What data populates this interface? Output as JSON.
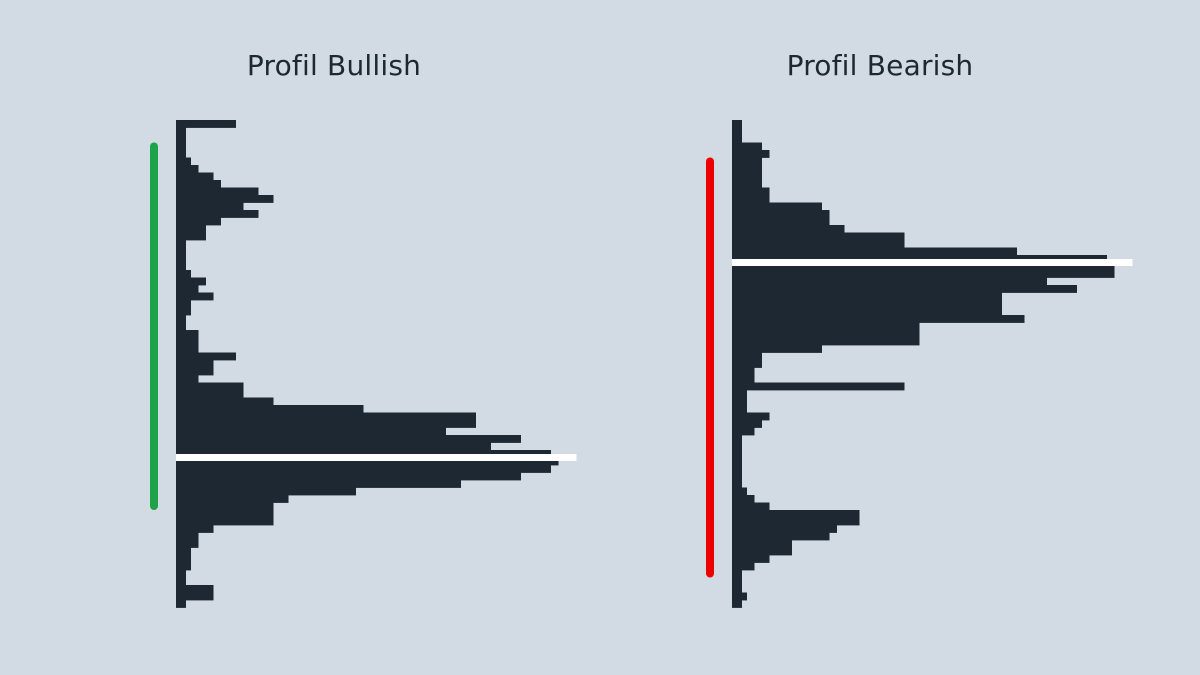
{
  "chart_data": [
    {
      "type": "bar",
      "orientation": "horizontal",
      "variant": "volume-profile",
      "title": "Profil Bullish",
      "range_line_color": "#1fa34a",
      "bar_color": "#1d2833",
      "poc_line_color": "#ffffff",
      "poc_level": 45.5,
      "range": [
        4,
        52
      ],
      "levels": [
        1,
        2,
        3,
        4,
        5,
        6,
        7,
        8,
        9,
        10,
        11,
        12,
        13,
        14,
        15,
        16,
        17,
        18,
        19,
        20,
        21,
        22,
        23,
        24,
        25,
        26,
        27,
        28,
        29,
        30,
        31,
        32,
        33,
        34,
        35,
        36,
        37,
        38,
        39,
        40,
        41,
        42,
        43,
        44,
        45,
        46,
        47,
        48,
        49,
        50,
        51,
        52,
        53,
        54,
        55,
        56,
        57,
        58,
        59,
        60,
        61,
        62,
        63,
        64,
        65
      ],
      "values": [
        8,
        1,
        1,
        1,
        1,
        2,
        3,
        5,
        6,
        11,
        13,
        9,
        11,
        6,
        4,
        4,
        1,
        1,
        1,
        1,
        2,
        4,
        3,
        5,
        2,
        2,
        1,
        1,
        3,
        3,
        3,
        8,
        5,
        5,
        3,
        9,
        9,
        13,
        25,
        40,
        40,
        36,
        46,
        42,
        50,
        51,
        50,
        46,
        38,
        24,
        15,
        13,
        13,
        13,
        5,
        3,
        3,
        2,
        2,
        2,
        1,
        1,
        5,
        5,
        1
      ],
      "xlim": [
        0,
        52
      ],
      "ylim": [
        1,
        65
      ]
    },
    {
      "type": "bar",
      "orientation": "horizontal",
      "variant": "volume-profile",
      "title": "Profil Bearish",
      "range_line_color": "#ec0000",
      "bar_color": "#1d2833",
      "poc_line_color": "#ffffff",
      "poc_level": 19.5,
      "range": [
        6,
        61
      ],
      "levels": [
        1,
        2,
        3,
        4,
        5,
        6,
        7,
        8,
        9,
        10,
        11,
        12,
        13,
        14,
        15,
        16,
        17,
        18,
        19,
        20,
        21,
        22,
        23,
        24,
        25,
        26,
        27,
        28,
        29,
        30,
        31,
        32,
        33,
        34,
        35,
        36,
        37,
        38,
        39,
        40,
        41,
        42,
        43,
        44,
        45,
        46,
        47,
        48,
        49,
        50,
        51,
        52,
        53,
        54,
        55,
        56,
        57,
        58,
        59,
        60,
        61,
        62,
        63,
        64,
        65
      ],
      "values": [
        1,
        1,
        1,
        4,
        5,
        4,
        4,
        4,
        4,
        5,
        5,
        12,
        13,
        13,
        15,
        23,
        23,
        38,
        50,
        51,
        51,
        42,
        46,
        36,
        36,
        36,
        39,
        25,
        25,
        25,
        12,
        4,
        4,
        3,
        3,
        23,
        2,
        2,
        2,
        5,
        4,
        3,
        1,
        1,
        1,
        1,
        1,
        1,
        1,
        2,
        3,
        5,
        17,
        17,
        14,
        13,
        8,
        8,
        5,
        3,
        1,
        1,
        1,
        2,
        1
      ],
      "xlim": [
        0,
        52
      ],
      "ylim": [
        1,
        65
      ]
    }
  ]
}
